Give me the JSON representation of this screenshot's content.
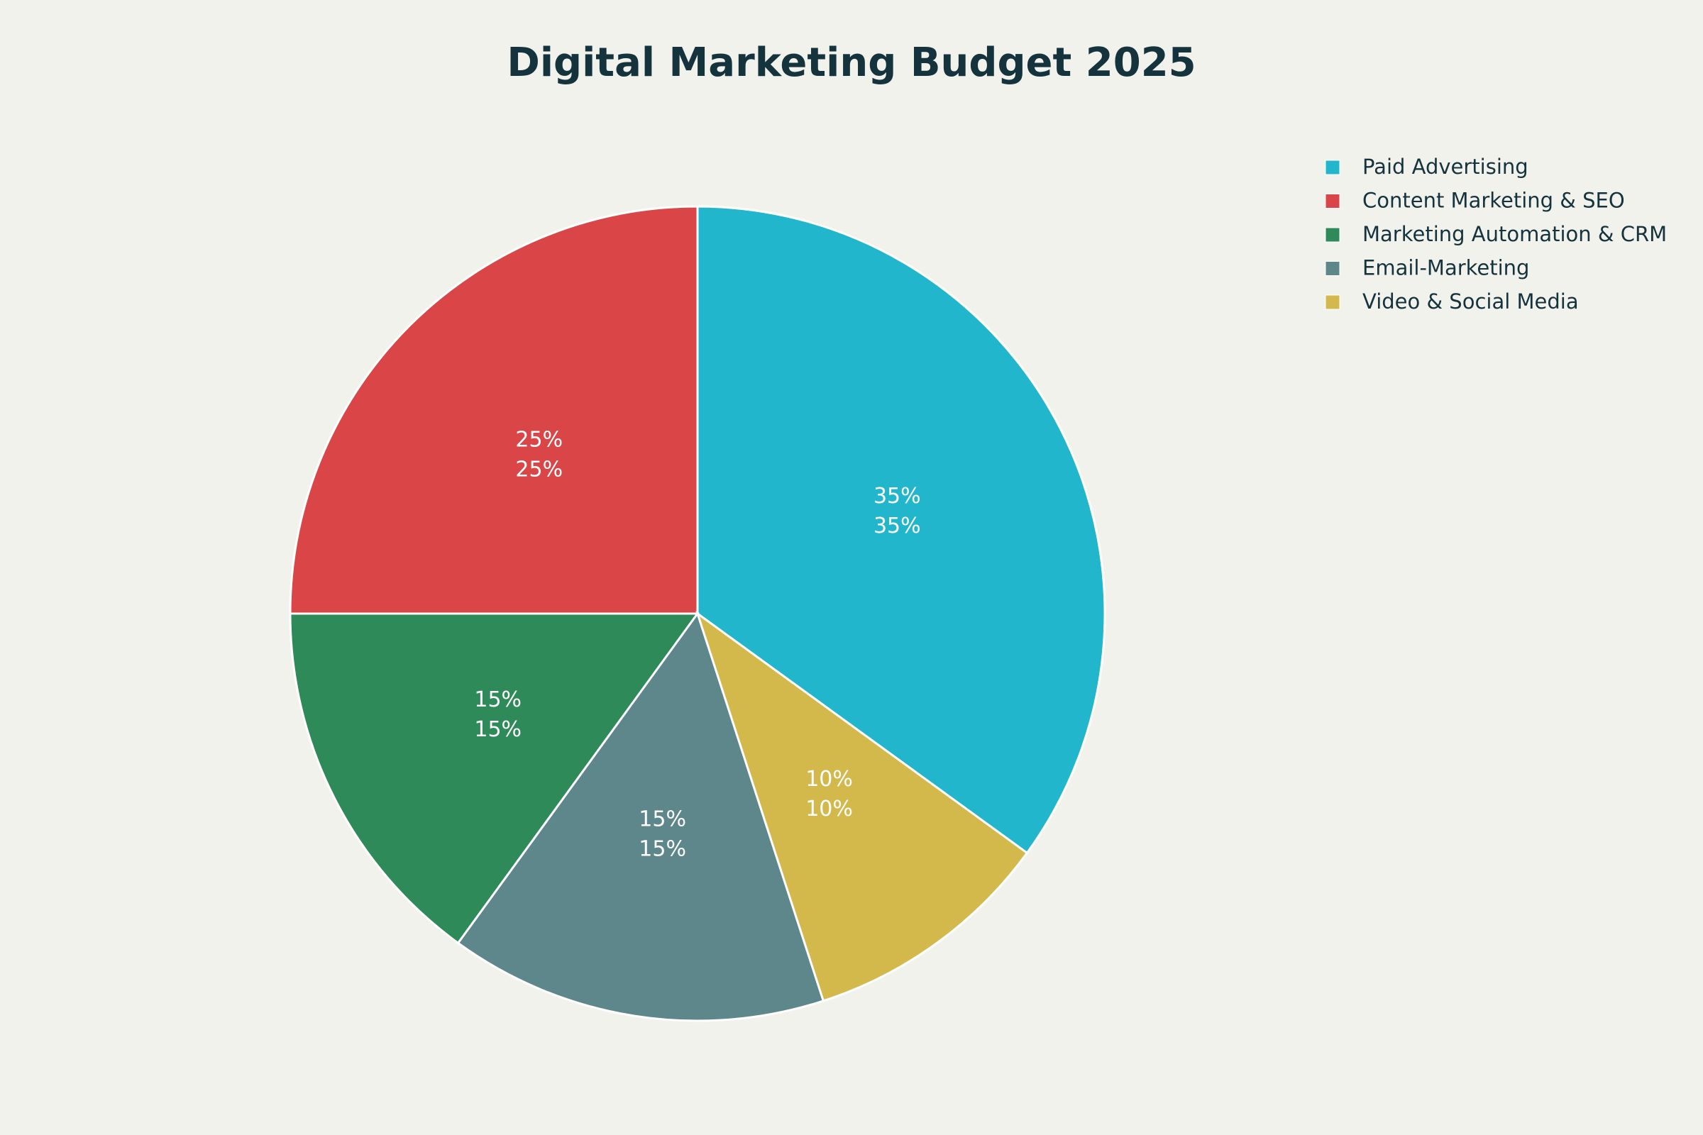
{
  "chart_data": {
    "type": "pie",
    "title": "Digital Marketing Budget 2025",
    "categories": [
      "Paid Advertising",
      "Content Marketing & SEO",
      "Marketing Automation & CRM",
      "Email-Marketing",
      "Video & Social Media"
    ],
    "values": [
      35,
      25,
      15,
      15,
      10
    ],
    "value_labels": [
      "35%",
      "25%",
      "15%",
      "15%",
      "10%"
    ],
    "colors": [
      "#22b6cc",
      "#da4648",
      "#2e8a59",
      "#5e878c",
      "#d3b94c"
    ],
    "legend": "top-right"
  }
}
